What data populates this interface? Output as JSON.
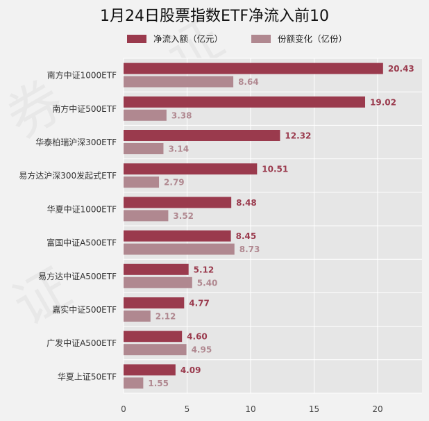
{
  "chart_data": {
    "type": "bar",
    "orientation": "horizontal",
    "title": "1月24日股票指数ETF净流入前10",
    "categories": [
      "南方中证1000ETF",
      "南方中证500ETF",
      "华泰柏瑞沪深300ETF",
      "易方达沪深300发起式ETF",
      "华夏中证1000ETF",
      "富国中证A500ETF",
      "易方达中证A500ETF",
      "嘉实中证500ETF",
      "广发中证A500ETF",
      "华夏上证50ETF"
    ],
    "series": [
      {
        "name": "净流入额（亿元）",
        "color": "#9a3a4d",
        "values": [
          20.43,
          19.02,
          12.32,
          10.51,
          8.48,
          8.45,
          5.12,
          4.77,
          4.6,
          4.09
        ],
        "labels": [
          "20.43",
          "19.02",
          "12.32",
          "10.51",
          "8.48",
          "8.45",
          "5.12",
          "4.77",
          "4.60",
          "4.09"
        ]
      },
      {
        "name": "份额变化（亿份）",
        "color": "#b08890",
        "values": [
          8.64,
          3.38,
          3.14,
          2.79,
          3.52,
          8.73,
          5.4,
          2.12,
          4.95,
          1.55
        ],
        "labels": [
          "8.64",
          "3.38",
          "3.14",
          "2.79",
          "3.52",
          "8.73",
          "5.40",
          "2.12",
          "4.95",
          "1.55"
        ]
      }
    ],
    "xlim": [
      0,
      23.5
    ],
    "xticks": [
      0,
      5,
      10,
      15,
      20
    ],
    "xtick_labels": [
      "0",
      "5",
      "10",
      "15",
      "20"
    ],
    "grid": true,
    "legend_position": "top",
    "plot_background": "#e6e6e6",
    "page_background": "#f2f2f2"
  }
}
